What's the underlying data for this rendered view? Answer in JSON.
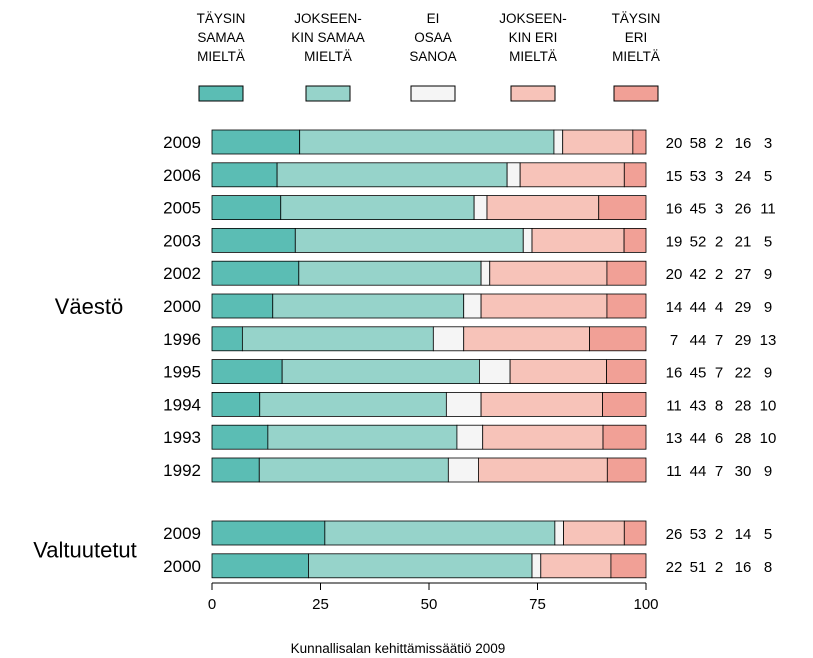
{
  "chart_data": {
    "type": "bar",
    "stacked": true,
    "orientation": "horizontal",
    "xlim": [
      0,
      100
    ],
    "x_ticks": [
      "0",
      "25",
      "50",
      "75",
      "100"
    ],
    "legend_placement": "top",
    "series": [
      {
        "name": [
          "TÄYSIN",
          "SAMAA",
          "MIELTÄ"
        ],
        "color": "#5bbdb4"
      },
      {
        "name": [
          "JOKSEEN-",
          "KIN SAMAA",
          "MIELTÄ"
        ],
        "color": "#96d3ca"
      },
      {
        "name": [
          "EI",
          "OSAA",
          "SANOA"
        ],
        "color": "#f5f5f5"
      },
      {
        "name": [
          "JOKSEEN-",
          "KIN ERI",
          "MIELTÄ"
        ],
        "color": "#f7c3b9"
      },
      {
        "name": [
          "TÄYSIN",
          "ERI",
          "MIELTÄ"
        ],
        "color": "#f1a096"
      }
    ],
    "groups": [
      {
        "label": "Väestö",
        "rows": [
          {
            "year": "2009",
            "values": [
              20,
              58,
              2,
              16,
              3
            ]
          },
          {
            "year": "2006",
            "values": [
              15,
              53,
              3,
              24,
              5
            ]
          },
          {
            "year": "2005",
            "values": [
              16,
              45,
              3,
              26,
              11
            ]
          },
          {
            "year": "2003",
            "values": [
              19,
              52,
              2,
              21,
              5
            ]
          },
          {
            "year": "2002",
            "values": [
              20,
              42,
              2,
              27,
              9
            ]
          },
          {
            "year": "2000",
            "values": [
              14,
              44,
              4,
              29,
              9
            ]
          },
          {
            "year": "1996",
            "values": [
              7,
              44,
              7,
              29,
              13
            ]
          },
          {
            "year": "1995",
            "values": [
              16,
              45,
              7,
              22,
              9
            ]
          },
          {
            "year": "1994",
            "values": [
              11,
              43,
              8,
              28,
              10
            ]
          },
          {
            "year": "1993",
            "values": [
              13,
              44,
              6,
              28,
              10
            ]
          },
          {
            "year": "1992",
            "values": [
              11,
              44,
              7,
              30,
              9
            ]
          }
        ]
      },
      {
        "label": "Valtuutetut",
        "rows": [
          {
            "year": "2009",
            "values": [
              26,
              53,
              2,
              14,
              5
            ]
          },
          {
            "year": "2000",
            "values": [
              22,
              51,
              2,
              16,
              8
            ]
          }
        ]
      }
    ],
    "source": "Kunnallisalan kehittämissäätiö 2009"
  }
}
